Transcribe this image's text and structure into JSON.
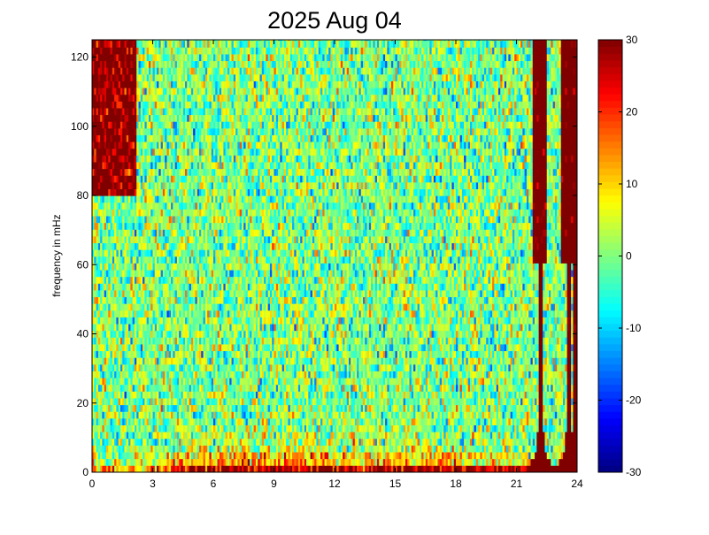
{
  "chart_data": {
    "type": "heatmap",
    "title": "2025 Aug 04",
    "xlabel": "",
    "ylabel": "frequency in mHz",
    "xlim": [
      0,
      24
    ],
    "ylim": [
      0,
      125
    ],
    "x_ticks": [
      0,
      3,
      6,
      9,
      12,
      15,
      18,
      21,
      24
    ],
    "y_ticks": [
      0,
      20,
      40,
      60,
      80,
      100,
      120
    ],
    "colorbar": {
      "colormap": "jet",
      "range": [
        -30,
        30
      ],
      "ticks": [
        -30,
        -20,
        -10,
        0,
        10,
        20,
        30
      ]
    },
    "x_resolution_hours": 0.1,
    "y_resolution_mHz": 1.95,
    "description_features": {
      "floor_band_mHz": [
        0,
        2
      ],
      "burst_centers_hours": [
        22.2,
        23.6
      ]
    },
    "grid": false,
    "legend": "none"
  }
}
